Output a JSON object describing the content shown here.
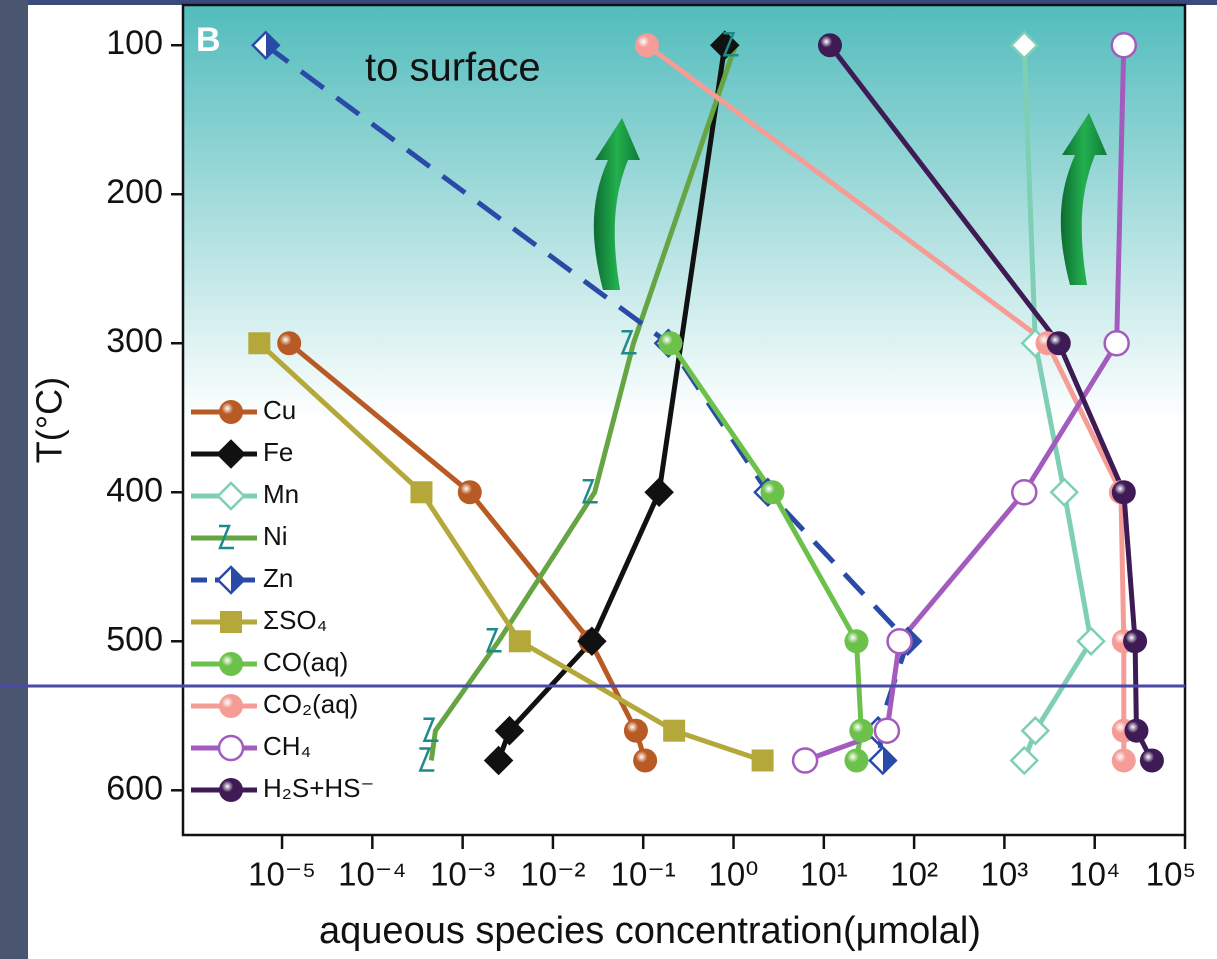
{
  "chart_data": {
    "type": "line",
    "panel_label": "B",
    "annotation": "to surface",
    "x_label": "aqueous species concentration(μmolal)",
    "y_label": "T(°C)",
    "x_log": true,
    "y_inverted": true,
    "xlim": [
      8e-07,
      100000
    ],
    "ylim": [
      73,
      630
    ],
    "xticks": [
      {
        "value": 1e-05,
        "label": "10⁻⁵"
      },
      {
        "value": 0.0001,
        "label": "10⁻⁴"
      },
      {
        "value": 0.001,
        "label": "10⁻³"
      },
      {
        "value": 0.01,
        "label": "10⁻²"
      },
      {
        "value": 0.1,
        "label": "10⁻¹"
      },
      {
        "value": 1,
        "label": "10⁰"
      },
      {
        "value": 10,
        "label": "10¹"
      },
      {
        "value": 100,
        "label": "10²"
      },
      {
        "value": 1000,
        "label": "10³"
      },
      {
        "value": 10000,
        "label": "10⁴"
      },
      {
        "value": 100000,
        "label": "10⁵"
      }
    ],
    "yticks": [
      100,
      200,
      300,
      400,
      500,
      600
    ],
    "reference_line": 530,
    "reference_color": "#4a4aa8",
    "legend": "lower left",
    "series": [
      {
        "name": "Cu",
        "color": "#b85a24",
        "marker": "circle",
        "filled": true,
        "x": [
          1.2e-05,
          0.0012,
          0.026,
          0.083,
          0.105
        ],
        "values": [
          300,
          400,
          500,
          560,
          580
        ]
      },
      {
        "name": "Fe",
        "color": "#111111",
        "marker": "diamond",
        "filled": true,
        "x": [
          0.8,
          0.15,
          0.027,
          0.0033,
          0.0025
        ],
        "values": [
          100,
          400,
          500,
          560,
          580
        ]
      },
      {
        "name": "Mn",
        "color": "#7fcfb4",
        "marker": "diamond",
        "filled": false,
        "x": [
          1660,
          2200,
          4600,
          9100,
          2200,
          1660
        ],
        "values": [
          100,
          300,
          400,
          500,
          560,
          580
        ]
      },
      {
        "name": "Ni",
        "color": "#66a544",
        "marker_color": "#1e8a8a",
        "marker": "zigzag",
        "filled": false,
        "x": [
          1.05,
          0.078,
          0.029,
          0.0025,
          0.0005,
          0.00045
        ],
        "values": [
          100,
          300,
          400,
          500,
          560,
          580
        ]
      },
      {
        "name": "Zn",
        "color": "#2a4aa8",
        "marker": "half-diamond",
        "dashed": true,
        "filled": false,
        "x": [
          6.6e-06,
          0.19,
          2.4,
          85,
          40,
          45
        ],
        "values": [
          100,
          300,
          400,
          500,
          560,
          580
        ]
      },
      {
        "name": "ΣSO₄",
        "color": "#b5a83a",
        "marker": "square",
        "filled": true,
        "x": [
          5.6e-06,
          0.00035,
          0.0043,
          0.22,
          2.1
        ],
        "values": [
          300,
          400,
          500,
          560,
          580
        ]
      },
      {
        "name": "CO(aq)",
        "color": "#6cc14a",
        "marker": "circle",
        "filled": true,
        "x": [
          0.2,
          2.7,
          23,
          26,
          23
        ],
        "values": [
          300,
          400,
          500,
          560,
          580
        ]
      },
      {
        "name": "CO₂(aq)",
        "color": "#f59c96",
        "marker": "circle",
        "filled": true,
        "x": [
          0.11,
          3000,
          19500,
          21000,
          21000,
          21000
        ],
        "values": [
          100,
          300,
          400,
          500,
          560,
          580
        ]
      },
      {
        "name": "CH₄",
        "color": "#a35bbd",
        "marker": "circle",
        "filled": false,
        "x": [
          21000,
          17500,
          1660,
          69,
          50,
          6.2
        ],
        "values": [
          100,
          300,
          400,
          500,
          560,
          580
        ]
      },
      {
        "name": "H₂S+HS⁻",
        "color": "#3e1b55",
        "marker": "circle",
        "filled": true,
        "x": [
          11.7,
          4000,
          21000,
          28000,
          29000,
          43000
        ],
        "values": [
          100,
          300,
          400,
          500,
          560,
          580
        ]
      }
    ]
  }
}
